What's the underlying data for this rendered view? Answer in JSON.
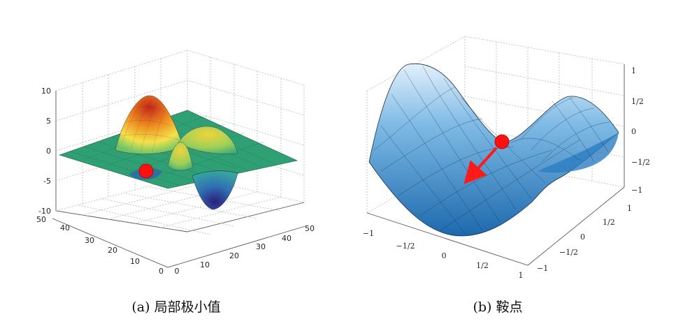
{
  "panels": [
    {
      "caption": "(a) 局部极小值",
      "z_ticks": [
        "10",
        "5",
        "0",
        "-5",
        "-10"
      ],
      "y_ticks": [
        "50",
        "40",
        "30",
        "20",
        "10",
        "0"
      ],
      "x_ticks": [
        "0",
        "10",
        "20",
        "30",
        "40",
        "50"
      ],
      "surface_colors": {
        "plane": "#2e9f73",
        "peak": "#d8391c",
        "mid": "#f2e64b",
        "valley": "#3a2f93"
      },
      "marker_color": "#ff0000"
    },
    {
      "caption": "(b) 鞍点",
      "z_ticks": [
        "1",
        "1/2",
        "0",
        "−1/2",
        "−1"
      ],
      "y_ticks": [
        "1",
        "1/2",
        "0",
        "−1/2",
        "−1"
      ],
      "x_ticks": [
        "−1",
        "−1/2",
        "0",
        "1/2",
        "1"
      ],
      "surface_colors": {
        "light": "#d6e9f7",
        "mid": "#5aa6dd",
        "dark": "#1d6eb3"
      },
      "marker_color": "#ff0000"
    }
  ]
}
